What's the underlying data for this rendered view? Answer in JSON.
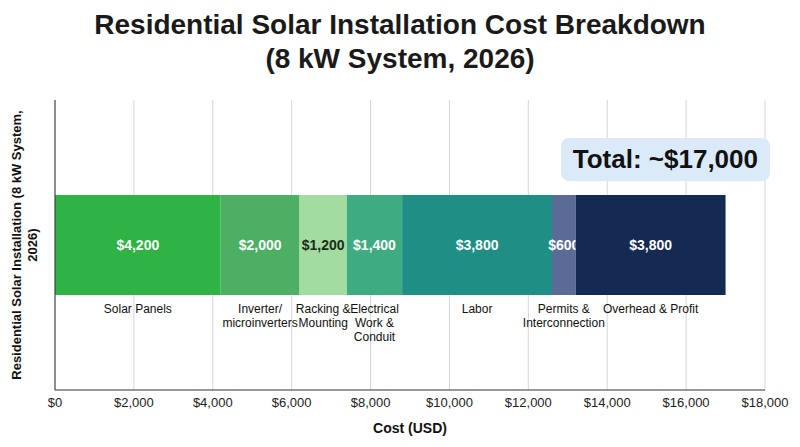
{
  "chart_data": {
    "type": "bar",
    "orientation": "horizontal",
    "stacked": true,
    "data_labels": true,
    "grid": true,
    "title": "Residential Solar Installation Cost Breakdown",
    "subtitle": "(8 kW System, 2026)",
    "ylabel": "Residential Solar Installation (8 kW System, 2026)",
    "xlabel": "Cost (USD)",
    "annotation": "Total: ~$17,000",
    "categories": [
      null
    ],
    "series": [
      {
        "name": "Solar Panels",
        "color": "#2fb344",
        "values": [
          4200
        ],
        "value_labels": [
          "$4,200"
        ]
      },
      {
        "name": "Inverter/ microinverters",
        "color": "#4caf63",
        "values": [
          2000
        ],
        "value_labels": [
          "$2,000"
        ]
      },
      {
        "name": "Racking & Mounting",
        "color": "#a3dca0",
        "values": [
          1200
        ],
        "value_labels": [
          "$1,200"
        ]
      },
      {
        "name": "Electrical Work & Conduit",
        "color": "#3fab80",
        "values": [
          1400
        ],
        "value_labels": [
          "$1,400"
        ]
      },
      {
        "name": "Labor",
        "color": "#1f8f86",
        "values": [
          3800
        ],
        "value_labels": [
          "$3,800"
        ]
      },
      {
        "name": "Permits & Interconnection",
        "color": "#5a6b96",
        "values": [
          600
        ],
        "value_labels": [
          "$600"
        ]
      },
      {
        "name": "Overhead & Profit",
        "color": "#152a52",
        "values": [
          3800
        ],
        "value_labels": [
          "$3,800"
        ]
      }
    ],
    "xlim": [
      0,
      18000
    ],
    "xticks": [
      {
        "value": 0,
        "label": "$0"
      },
      {
        "value": 2000,
        "label": "$2,000"
      },
      {
        "value": 4000,
        "label": "$4,000"
      },
      {
        "value": 6000,
        "label": "$6,000"
      },
      {
        "value": 8000,
        "label": "$8,000"
      },
      {
        "value": 10000,
        "label": "$10,000"
      },
      {
        "value": 12000,
        "label": "$12,000"
      },
      {
        "value": 14000,
        "label": "$14,000"
      },
      {
        "value": 16000,
        "label": "$16,000"
      },
      {
        "value": 18000,
        "label": "$18,000"
      }
    ]
  }
}
